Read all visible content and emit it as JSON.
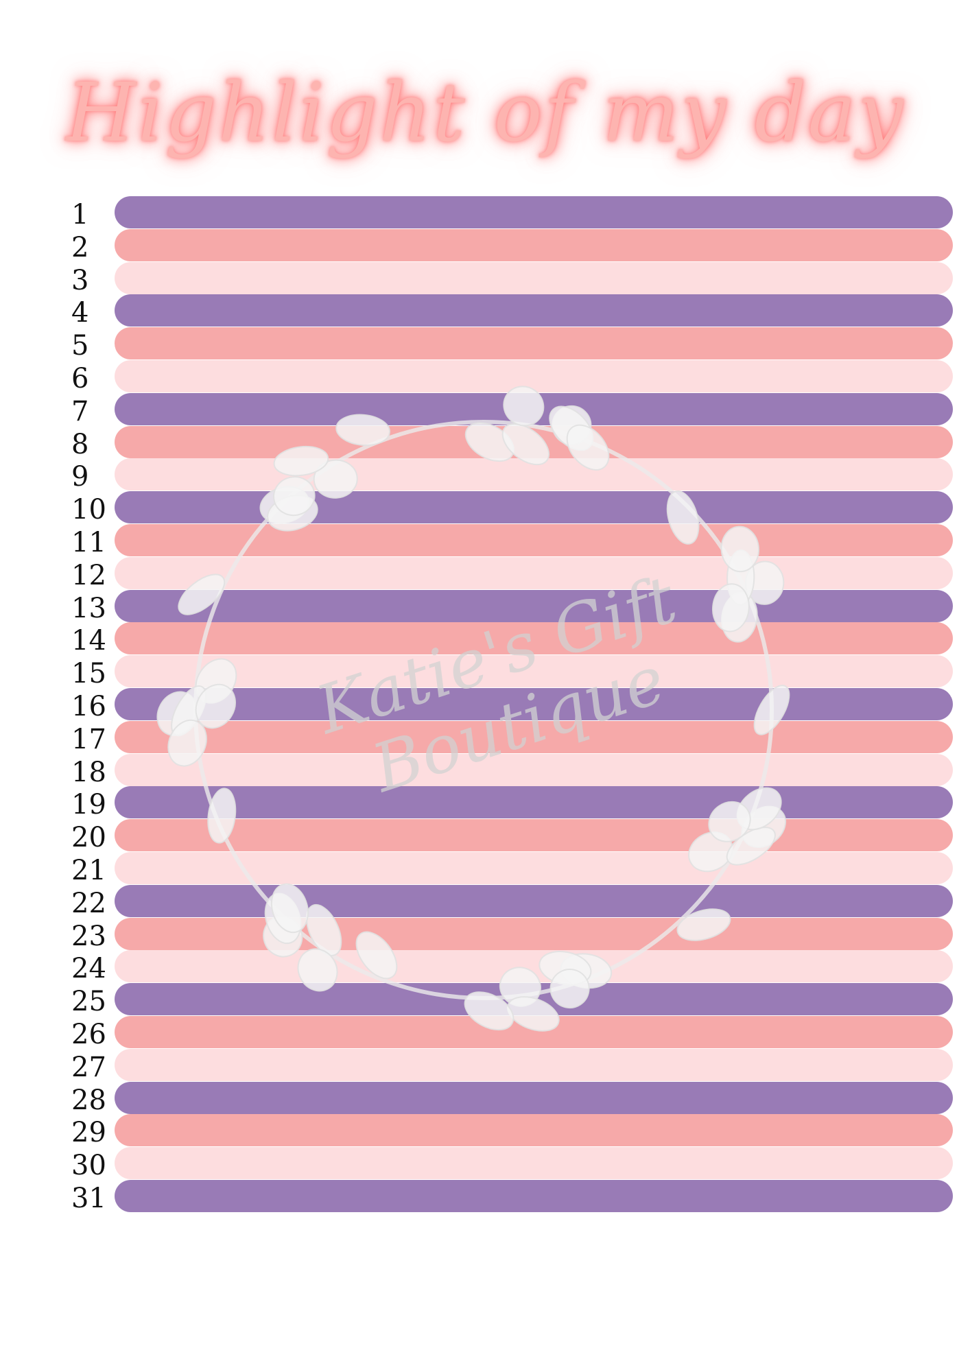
{
  "title": "Highlight of my day",
  "watermark": "Katie's Gift Boutique",
  "colors": {
    "purple": "#997bb6",
    "coral": "#f6a9a9",
    "pink": "#fddddf",
    "title_glow": "#ff6b6b"
  },
  "days": [
    "1",
    "2",
    "3",
    "4",
    "5",
    "6",
    "7",
    "8",
    "9",
    "10",
    "11",
    "12",
    "13",
    "14",
    "15",
    "16",
    "17",
    "18",
    "19",
    "20",
    "21",
    "22",
    "23",
    "24",
    "25",
    "26",
    "27",
    "28",
    "29",
    "30",
    "31"
  ]
}
